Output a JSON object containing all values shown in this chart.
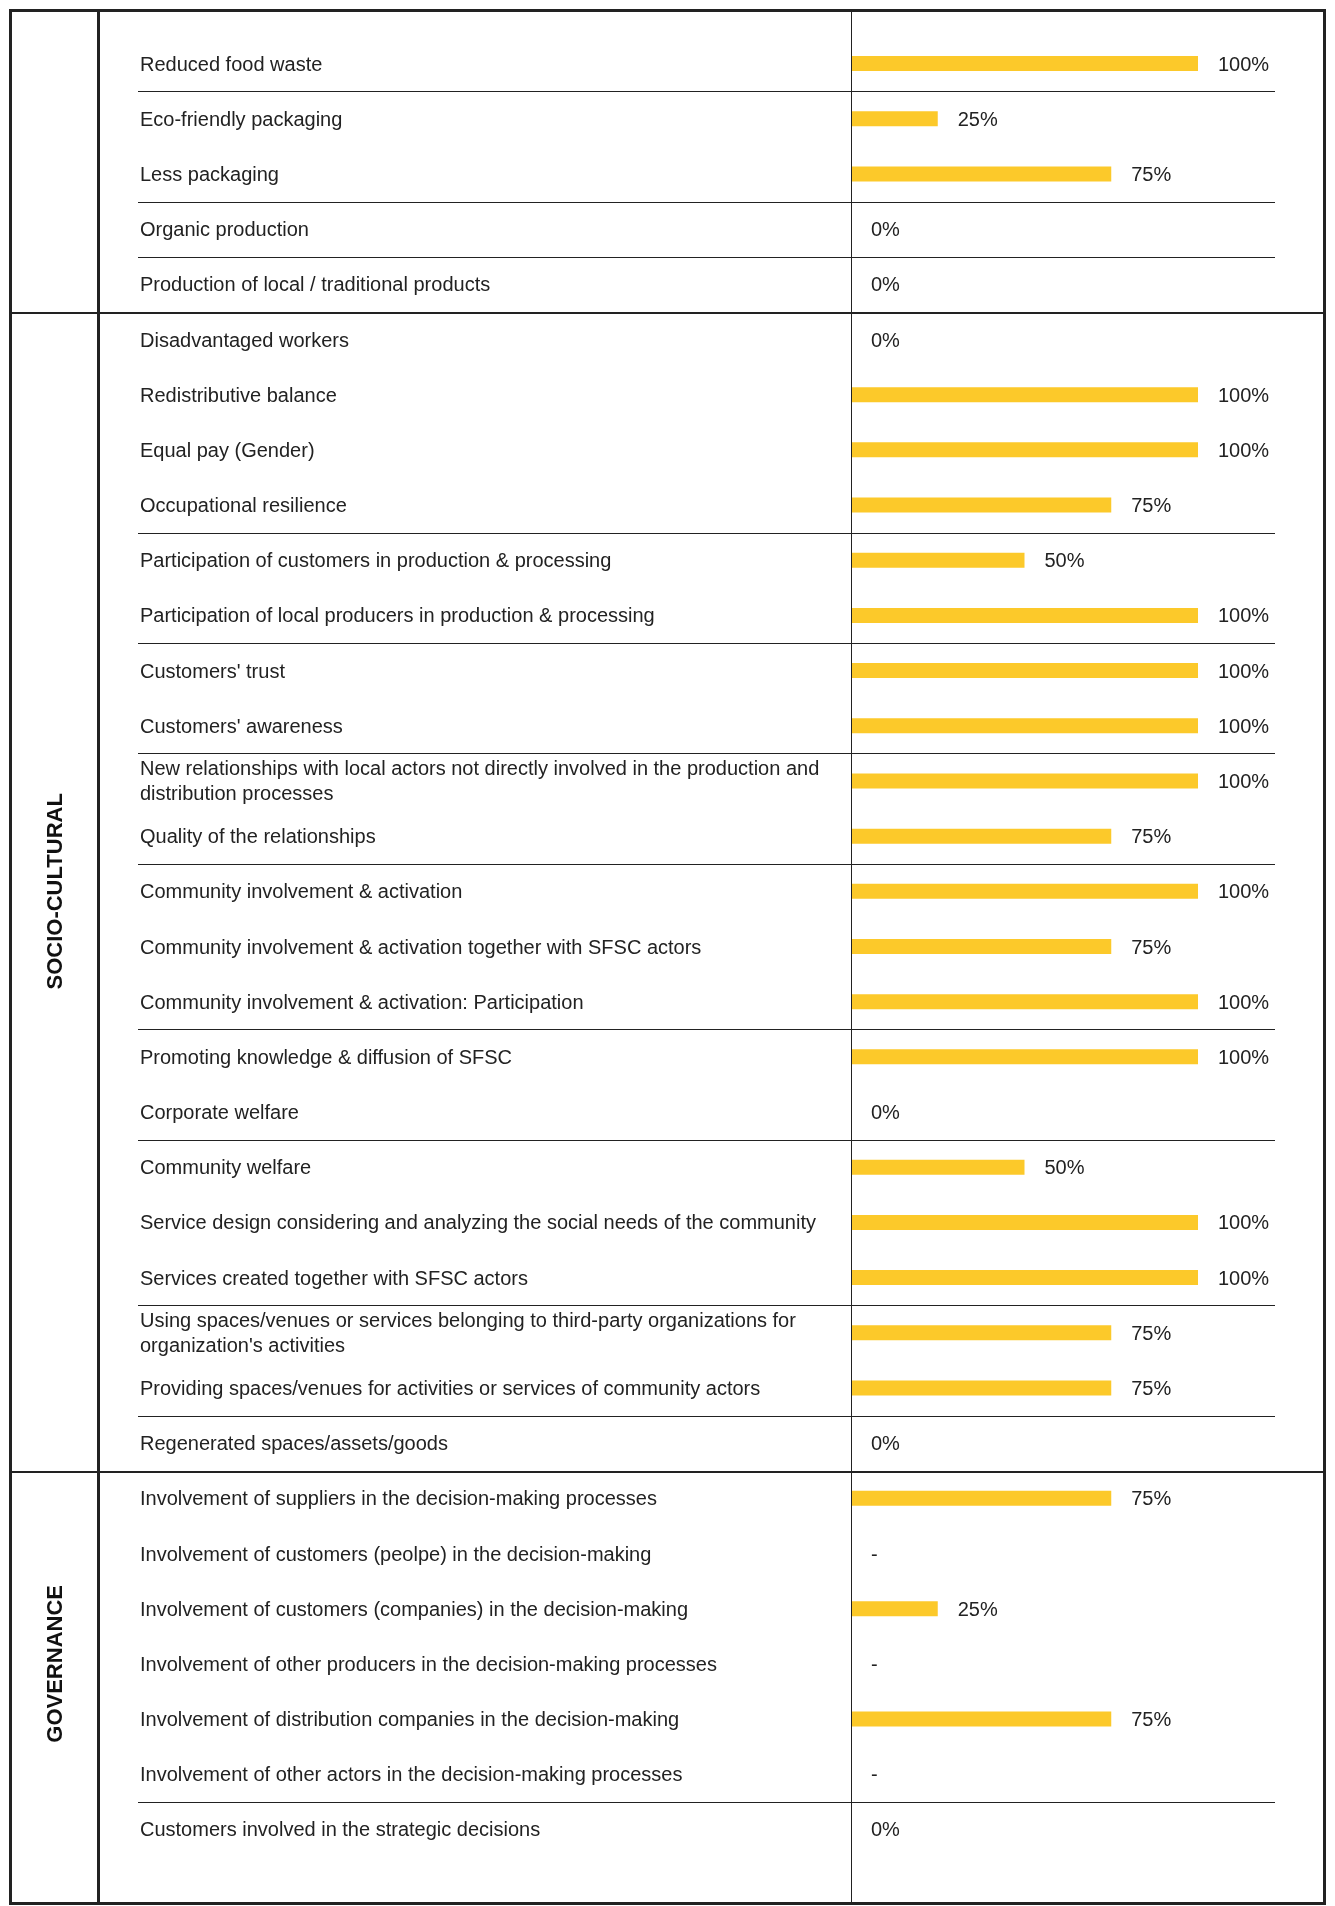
{
  "chart_data": {
    "type": "bar",
    "orientation": "horizontal",
    "categories": [
      "Reduced food waste",
      "Eco-friendly packaging",
      "Less packaging",
      "Organic production",
      "Production of local / traditional products",
      "Disadvantaged workers",
      "Redistributive balance",
      "Equal pay (Gender)",
      "Occupational resilience",
      "Participation of customers in production & processing",
      "Participation of local producers in production & processing",
      "Customers' trust",
      "Customers' awareness",
      "New relationships with local actors not directly involved in the production and distribution processes",
      "Quality of the relationships",
      "Community involvement & activation",
      "Community involvement & activation together with SFSC actors",
      "Community involvement & activation: Participation",
      "Promoting knowledge & diffusion of SFSC",
      "Corporate welfare",
      "Community welfare",
      "Service design considering and analyzing the social needs of the community",
      "Services created together with SFSC actors",
      "Using spaces/venues or services belonging to third-party organizations for organization's activities",
      "Providing spaces/venues for activities or services of community actors",
      "Regenerated spaces/assets/goods",
      "Involvement of suppliers in the decision-making processes",
      "Involvement of customers (peolpe) in the decision-making",
      "Involvement of customers (companies) in the decision-making",
      "Involvement of other producers in the decision-making processes",
      "Involvement of distribution companies in the decision-making",
      "Involvement of other actors in the decision-making processes",
      "Customers involved in the strategic decisions"
    ],
    "values": [
      100,
      25,
      75,
      0,
      0,
      0,
      100,
      100,
      75,
      50,
      100,
      100,
      100,
      100,
      75,
      100,
      75,
      100,
      100,
      0,
      50,
      100,
      100,
      75,
      75,
      0,
      75,
      null,
      25,
      null,
      75,
      null,
      0
    ],
    "value_labels": [
      "100%",
      "25%",
      "75%",
      "0%",
      "0%",
      "0%",
      "100%",
      "100%",
      "75%",
      "50%",
      "100%",
      "100%",
      "100%",
      "100%",
      "75%",
      "100%",
      "75%",
      "100%",
      "100%",
      "0%",
      "50%",
      "100%",
      "100%",
      "75%",
      "75%",
      "0%",
      "75%",
      "-",
      "25%",
      "-",
      "75%",
      "-",
      "0%"
    ],
    "color": "#fcc92a",
    "xlim": [
      0,
      100
    ],
    "tick_labels": "y",
    "grid": false,
    "annotations": [
      "SOCIO-CULTURAL",
      "GOVERNANCE"
    ]
  }
}
